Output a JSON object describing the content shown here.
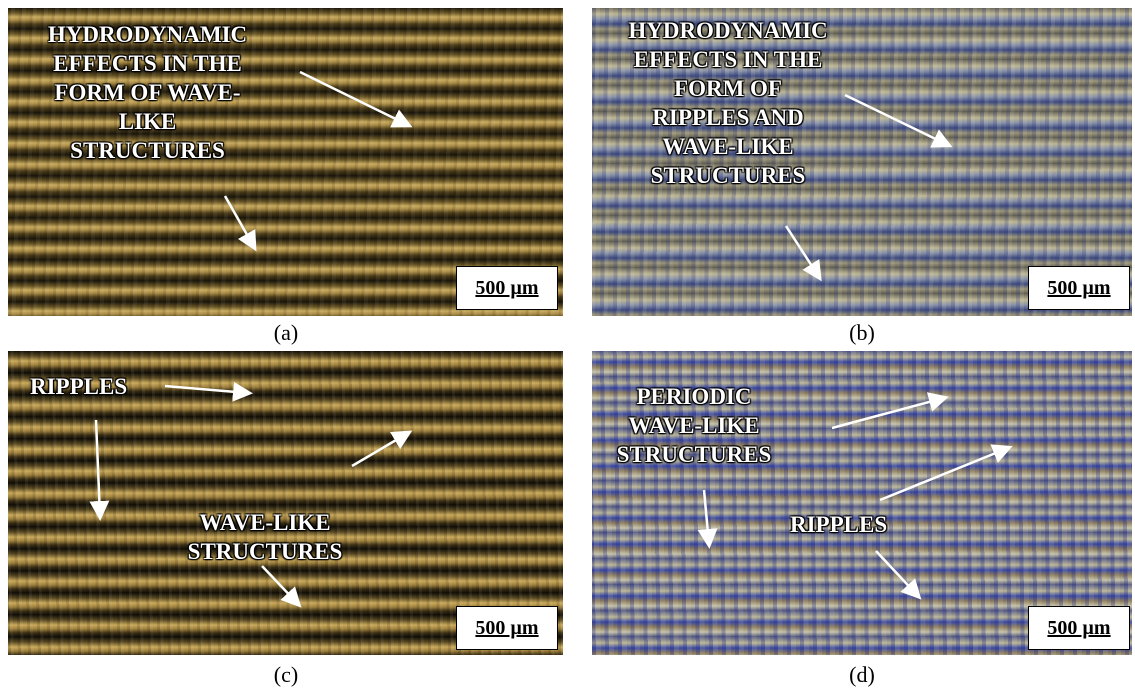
{
  "panels": [
    {
      "caption": "(a)",
      "scale_bar": "500 µm",
      "annotations": [
        {
          "lines": [
            "HYDRODYNAMIC",
            "EFFECTS IN THE",
            "FORM OF WAVE-",
            "LIKE",
            "STRUCTURES"
          ]
        }
      ]
    },
    {
      "caption": "(b)",
      "scale_bar": "500 µm",
      "annotations": [
        {
          "lines": [
            "HYDRODYNAMIC",
            "EFFECTS IN THE",
            "FORM OF",
            "RIPPLES AND",
            "WAVE-LIKE",
            "STRUCTURES"
          ]
        }
      ]
    },
    {
      "caption": "(c)",
      "scale_bar": "500 µm",
      "annotations": [
        {
          "lines": [
            "RIPPLES"
          ]
        },
        {
          "lines": [
            "WAVE-LIKE",
            "STRUCTURES"
          ]
        }
      ]
    },
    {
      "caption": "(d)",
      "scale_bar": "500 µm",
      "annotations": [
        {
          "lines": [
            "PERIODIC",
            "WAVE-LIKE",
            "STRUCTURES"
          ]
        },
        {
          "lines": [
            "RIPPLES"
          ]
        }
      ]
    }
  ]
}
